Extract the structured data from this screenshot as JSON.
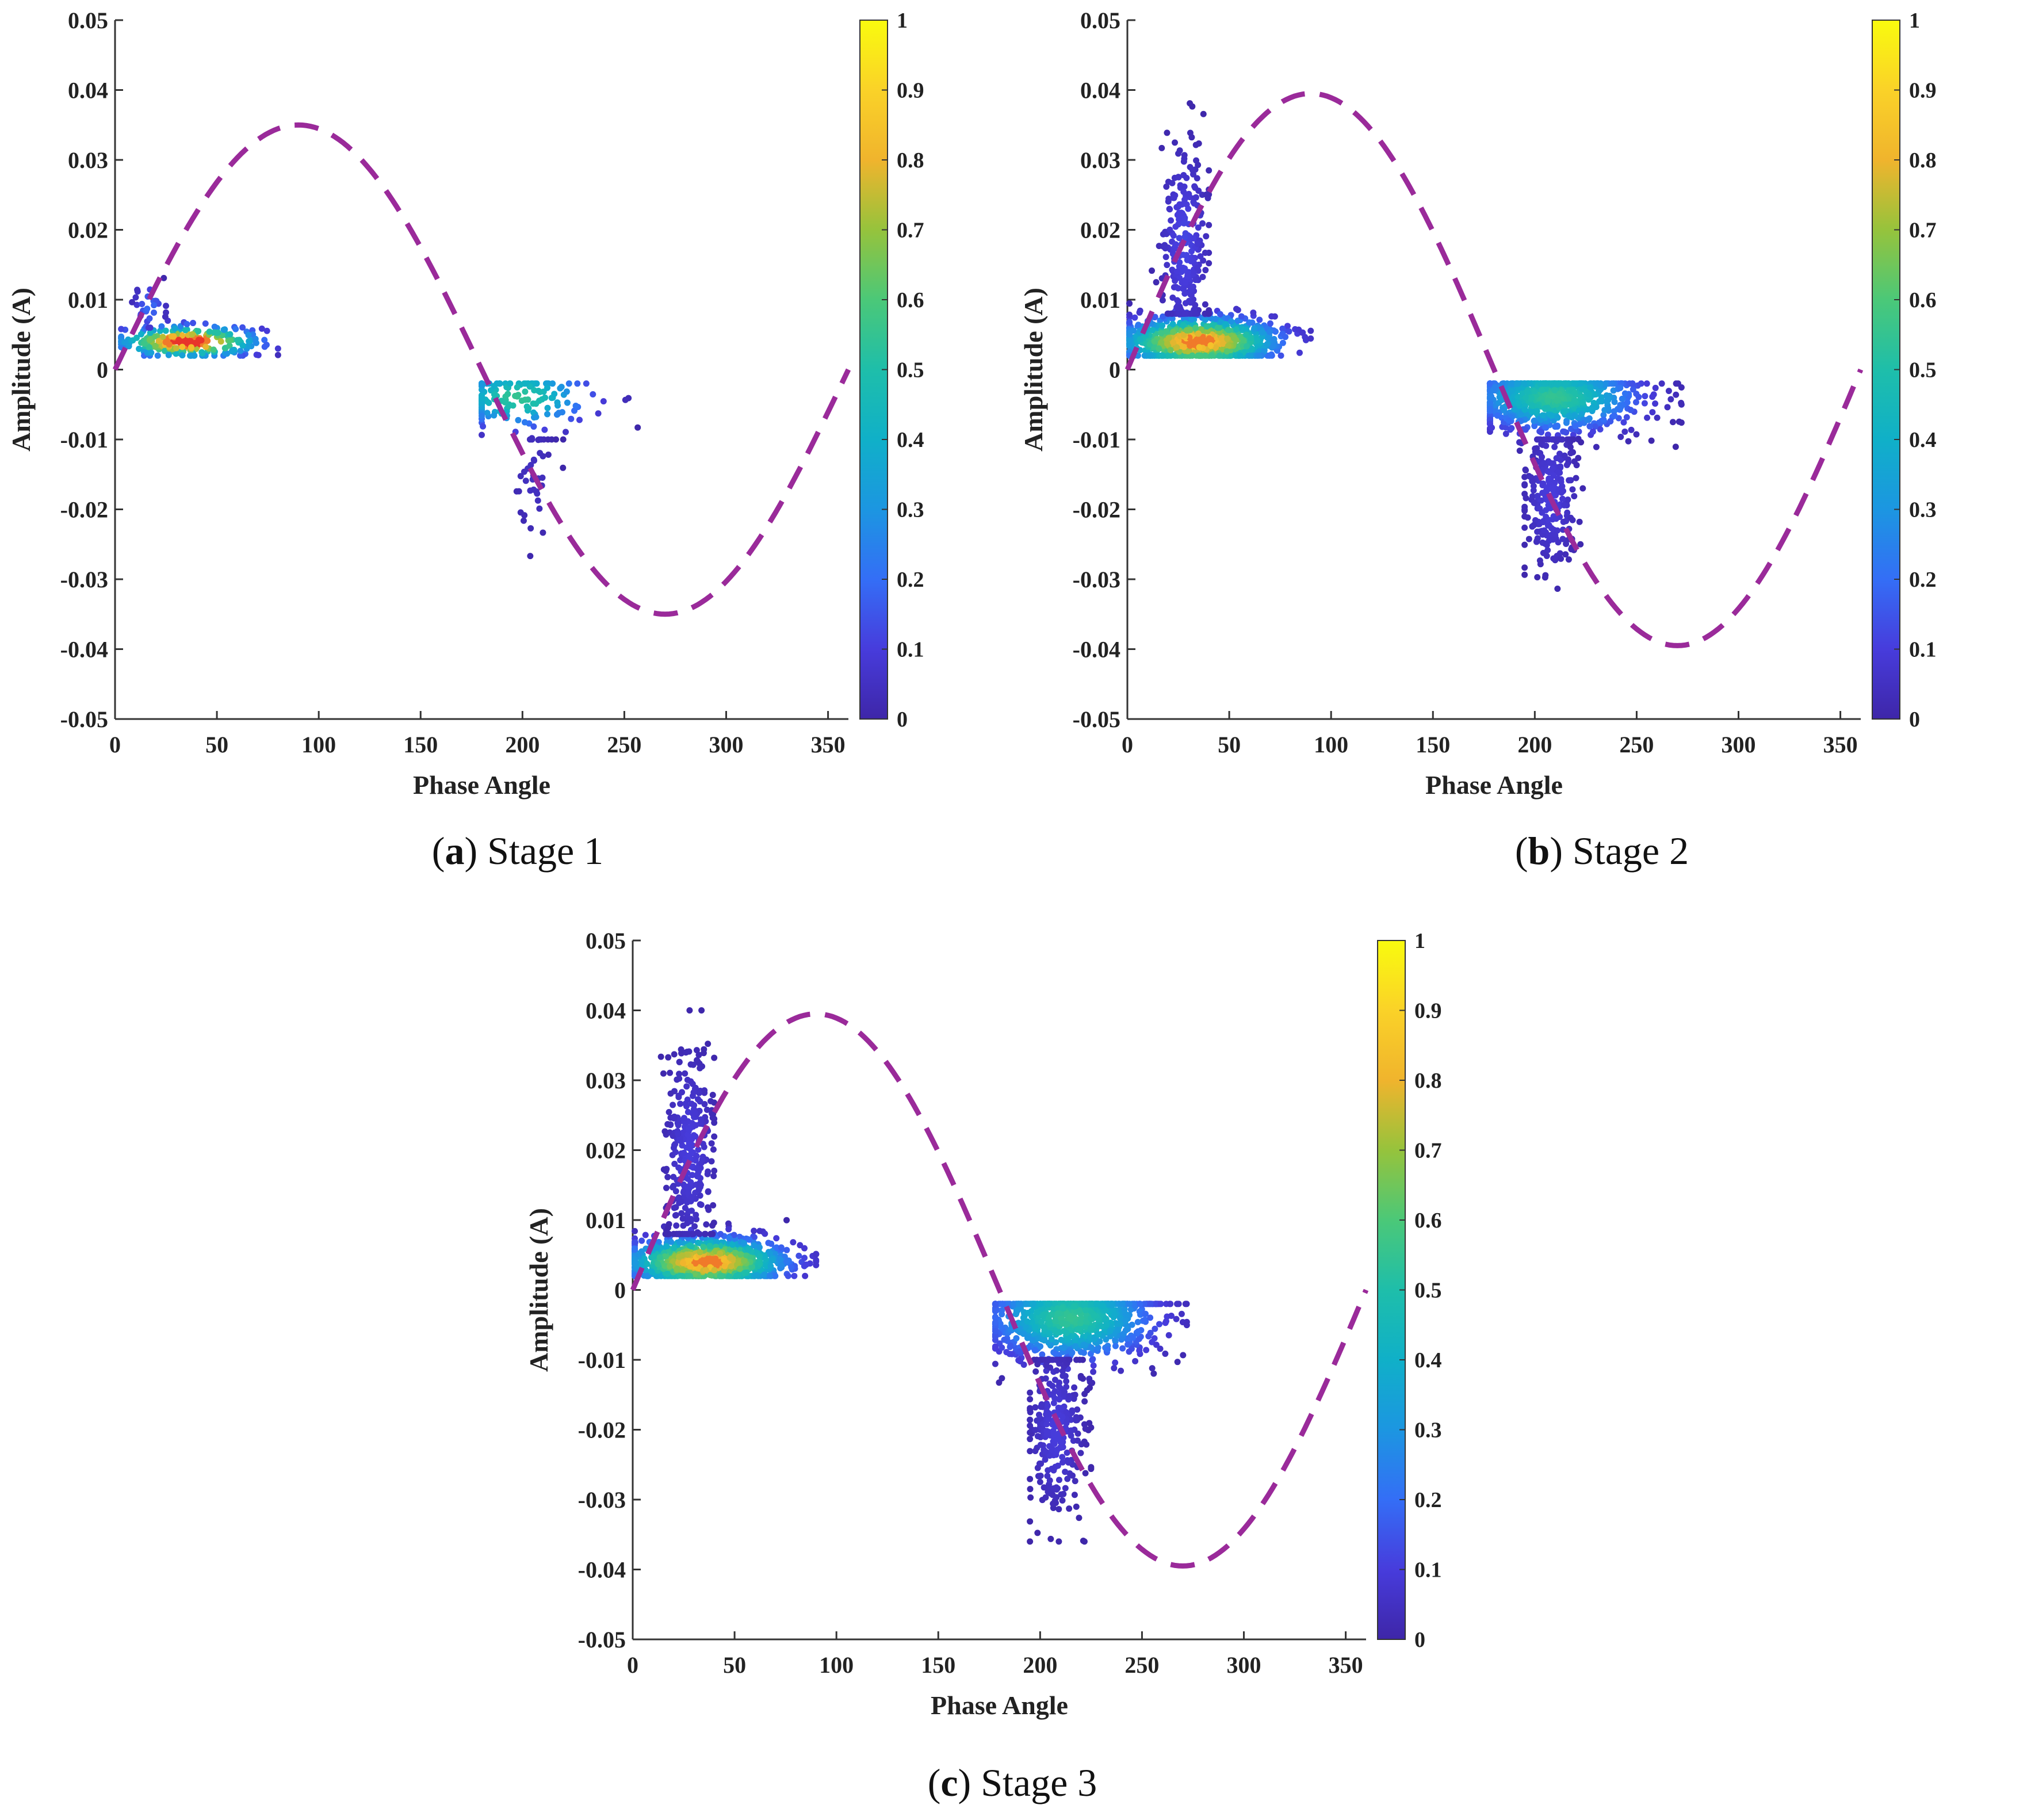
{
  "chart_data": [
    {
      "type": "scatter",
      "panel_letter": "a",
      "caption_text": "Stage 1",
      "xlabel": "Phase Angle",
      "ylabel": "Amplitude (A)",
      "xlim": [
        0,
        360
      ],
      "ylim": [
        -0.05,
        0.05
      ],
      "xticks": [
        "0",
        "50",
        "100",
        "150",
        "200",
        "250",
        "300",
        "350"
      ],
      "yticks": [
        "-0.05",
        "-0.04",
        "-0.03",
        "-0.02",
        "-0.01",
        "0",
        "0.01",
        "0.02",
        "0.03",
        "0.04",
        "0.05"
      ],
      "colorbar_ticks": [
        "0",
        "0.1",
        "0.2",
        "0.3",
        "0.4",
        "0.5",
        "0.6",
        "0.7",
        "0.8",
        "0.9",
        "1"
      ],
      "colorbar_range": [
        0,
        1
      ],
      "colormap": "parula",
      "grid": false,
      "reference_curve": {
        "shape": "sine",
        "amplitude": 0.035,
        "color": "#9a2a9a",
        "style": "dashed"
      },
      "clusters": [
        {
          "x": [
            3,
            80
          ],
          "y": [
            0.002,
            0.007
          ],
          "center": [
            36,
            0.004
          ],
          "density_peak": 1.0,
          "count": 260
        },
        {
          "x": [
            8,
            25
          ],
          "y": [
            0.006,
            0.014
          ],
          "center": [
            17,
            0.009
          ],
          "density_peak": 0.2,
          "count": 30
        },
        {
          "x": [
            180,
            262
          ],
          "y": [
            -0.012,
            -0.002
          ],
          "center": [
            198,
            -0.004
          ],
          "density_peak": 0.55,
          "count": 160
        },
        {
          "x": [
            195,
            220
          ],
          "y": [
            -0.035,
            -0.01
          ],
          "center": [
            205,
            -0.015
          ],
          "density_peak": 0.05,
          "count": 40
        }
      ]
    },
    {
      "type": "scatter",
      "panel_letter": "b",
      "caption_text": "Stage 2",
      "xlabel": "Phase Angle",
      "ylabel": "Amplitude (A)",
      "xlim": [
        0,
        360
      ],
      "ylim": [
        -0.05,
        0.05
      ],
      "xticks": [
        "0",
        "50",
        "100",
        "150",
        "200",
        "250",
        "300",
        "350"
      ],
      "yticks": [
        "-0.05",
        "-0.04",
        "-0.03",
        "-0.02",
        "-0.01",
        "0",
        "0.01",
        "0.02",
        "0.03",
        "0.04",
        "0.05"
      ],
      "colorbar_ticks": [
        "0",
        "0.1",
        "0.2",
        "0.3",
        "0.4",
        "0.5",
        "0.6",
        "0.7",
        "0.8",
        "0.9",
        "1"
      ],
      "colorbar_range": [
        0,
        1
      ],
      "colormap": "parula",
      "grid": false,
      "reference_curve": {
        "shape": "sine",
        "amplitude": 0.0395,
        "color": "#9a2a9a",
        "style": "dashed"
      },
      "clusters": [
        {
          "x": [
            1,
            90
          ],
          "y": [
            0.002,
            0.01
          ],
          "center": [
            35,
            0.004
          ],
          "density_peak": 0.9,
          "count": 900
        },
        {
          "x": [
            12,
            40
          ],
          "y": [
            0.008,
            0.04
          ],
          "center": [
            28,
            0.018
          ],
          "density_peak": 0.12,
          "count": 260
        },
        {
          "x": [
            178,
            272
          ],
          "y": [
            -0.013,
            -0.002
          ],
          "center": [
            210,
            -0.004
          ],
          "density_peak": 0.55,
          "count": 800
        },
        {
          "x": [
            195,
            225
          ],
          "y": [
            -0.035,
            -0.01
          ],
          "center": [
            208,
            -0.018
          ],
          "density_peak": 0.1,
          "count": 260
        }
      ]
    },
    {
      "type": "scatter",
      "panel_letter": "c",
      "caption_text": "Stage 3",
      "xlabel": "Phase Angle",
      "ylabel": "Amplitude (A)",
      "xlim": [
        0,
        360
      ],
      "ylim": [
        -0.05,
        0.05
      ],
      "xticks": [
        "0",
        "50",
        "100",
        "150",
        "200",
        "250",
        "300",
        "350"
      ],
      "yticks": [
        "-0.05",
        "-0.04",
        "-0.03",
        "-0.02",
        "-0.01",
        "0",
        "0.01",
        "0.02",
        "0.03",
        "0.04",
        "0.05"
      ],
      "colorbar_ticks": [
        "0",
        "0.1",
        "0.2",
        "0.3",
        "0.4",
        "0.5",
        "0.6",
        "0.7",
        "0.8",
        "0.9",
        "1"
      ],
      "colorbar_range": [
        0,
        1
      ],
      "colormap": "parula",
      "grid": false,
      "reference_curve": {
        "shape": "sine",
        "amplitude": 0.0395,
        "color": "#9a2a9a",
        "style": "dashed"
      },
      "clusters": [
        {
          "x": [
            1,
            90
          ],
          "y": [
            0.002,
            0.01
          ],
          "center": [
            36,
            0.004
          ],
          "density_peak": 0.9,
          "count": 1000
        },
        {
          "x": [
            12,
            40
          ],
          "y": [
            0.008,
            0.04
          ],
          "center": [
            28,
            0.02
          ],
          "density_peak": 0.1,
          "count": 320
        },
        {
          "x": [
            178,
            272
          ],
          "y": [
            -0.016,
            -0.002
          ],
          "center": [
            215,
            -0.004
          ],
          "density_peak": 0.55,
          "count": 900
        },
        {
          "x": [
            195,
            225
          ],
          "y": [
            -0.036,
            -0.01
          ],
          "center": [
            208,
            -0.02
          ],
          "density_peak": 0.1,
          "count": 300
        }
      ]
    }
  ]
}
